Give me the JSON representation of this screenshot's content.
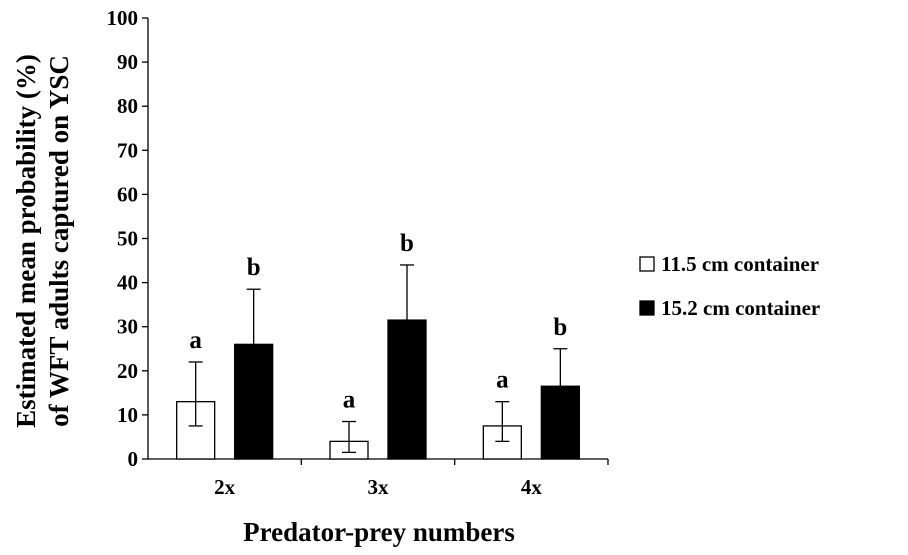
{
  "chart_data": {
    "type": "bar",
    "title": "",
    "xlabel": "Predator-prey numbers",
    "ylabel_line1": "Estimated mean probability (%)",
    "ylabel_line2": "of WFT adults captured on YSC",
    "categories": [
      "2x",
      "3x",
      "4x"
    ],
    "ylim": [
      0,
      100
    ],
    "yticks": [
      0,
      10,
      20,
      30,
      40,
      50,
      60,
      70,
      80,
      90,
      100
    ],
    "grid": false,
    "legend_position": "right",
    "series": [
      {
        "name": "11.5 cm container",
        "color": "#ffffff",
        "values": [
          13,
          4,
          7.5
        ],
        "err_upper": [
          22,
          8.5,
          13
        ],
        "err_lower": [
          7.5,
          1.5,
          4
        ],
        "letters": [
          "a",
          "a",
          "a"
        ]
      },
      {
        "name": "15.2 cm container",
        "color": "#000000",
        "values": [
          26,
          31.5,
          16.5
        ],
        "err_upper": [
          38.5,
          44,
          25
        ],
        "err_lower": null,
        "letters": [
          "b",
          "b",
          "b"
        ]
      }
    ]
  }
}
